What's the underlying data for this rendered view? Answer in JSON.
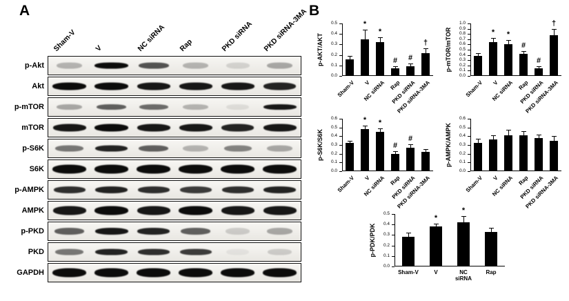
{
  "panels": {
    "a_label": "A",
    "b_label": "B"
  },
  "blot": {
    "lane_labels": [
      "Sham-V",
      "V",
      "NC siRNA",
      "Rap",
      "PKD siRNA",
      "PKD siRNA-3MA"
    ],
    "rows": [
      {
        "label": "p-Akt",
        "thickness": 9,
        "bands": [
          0.25,
          0.95,
          0.65,
          0.25,
          0.12,
          0.3
        ]
      },
      {
        "label": "Akt",
        "thickness": 11,
        "bands": [
          0.95,
          0.95,
          0.9,
          0.9,
          0.9,
          0.85
        ]
      },
      {
        "label": "p-mTOR",
        "thickness": 8,
        "bands": [
          0.3,
          0.6,
          0.55,
          0.25,
          0.08,
          0.9
        ]
      },
      {
        "label": "mTOR",
        "thickness": 11,
        "bands": [
          0.9,
          0.95,
          0.9,
          0.9,
          0.85,
          0.9
        ]
      },
      {
        "label": "p-S6K",
        "thickness": 9,
        "bands": [
          0.5,
          0.85,
          0.6,
          0.25,
          0.45,
          0.3
        ]
      },
      {
        "label": "S6K",
        "thickness": 13,
        "bands": [
          0.95,
          0.95,
          0.95,
          0.95,
          0.95,
          0.95
        ]
      },
      {
        "label": "p-AMPK",
        "thickness": 10,
        "bands": [
          0.8,
          0.85,
          0.8,
          0.75,
          0.8,
          0.85
        ]
      },
      {
        "label": "AMPK",
        "thickness": 13,
        "bands": [
          0.9,
          0.95,
          0.9,
          0.95,
          0.9,
          0.9
        ]
      },
      {
        "label": "p-PKD",
        "thickness": 10,
        "bands": [
          0.6,
          0.9,
          0.85,
          0.6,
          0.15,
          0.3
        ]
      },
      {
        "label": "PKD",
        "thickness": 9,
        "bands": [
          0.5,
          0.85,
          0.8,
          0.75,
          0.05,
          0.15
        ]
      },
      {
        "label": "GAPDH",
        "thickness": 13,
        "bands": [
          0.95,
          0.95,
          0.95,
          0.95,
          0.95,
          0.95
        ]
      }
    ]
  },
  "chart_data": [
    {
      "type": "bar",
      "ylabel": "p-AKT/AKT",
      "ylim": [
        0,
        0.5
      ],
      "ytick_step": 0.1,
      "categories": [
        "Sham-V",
        "V",
        "NC siRNA",
        "Rap",
        "PKD siRNA",
        "PKD siRNA-3MA"
      ],
      "values": [
        0.16,
        0.35,
        0.32,
        0.07,
        0.09,
        0.22
      ],
      "errors": [
        0.03,
        0.09,
        0.05,
        0.02,
        0.03,
        0.04
      ],
      "annotations": [
        "",
        "*",
        "*",
        "#",
        "#",
        "†"
      ],
      "xlabel_rotated": true,
      "bar_color": "#000000",
      "grid": false,
      "legend": "none"
    },
    {
      "type": "bar",
      "ylabel": "p-mTOR/mTOR",
      "ylim": [
        0,
        1.0
      ],
      "ytick_step": 0.1,
      "categories": [
        "Sham-V",
        "V",
        "NC siRNA",
        "Rap",
        "PKD siRNA",
        "PKD siRNA-3MA"
      ],
      "values": [
        0.38,
        0.65,
        0.6,
        0.42,
        0.15,
        0.78
      ],
      "errors": [
        0.05,
        0.07,
        0.08,
        0.06,
        0.04,
        0.12
      ],
      "annotations": [
        "",
        "*",
        "*",
        "#",
        "#",
        "†"
      ],
      "xlabel_rotated": true,
      "bar_color": "#000000",
      "grid": false,
      "legend": "none"
    },
    {
      "type": "bar",
      "ylabel": "p-S6K/S6K",
      "ylim": [
        0,
        0.6
      ],
      "ytick_step": 0.1,
      "categories": [
        "Sham-V",
        "V",
        "NC siRNA",
        "Rap",
        "PKD siRNA",
        "PKD siRNA-3MA"
      ],
      "values": [
        0.32,
        0.48,
        0.45,
        0.2,
        0.27,
        0.22
      ],
      "errors": [
        0.03,
        0.04,
        0.04,
        0.03,
        0.04,
        0.03
      ],
      "annotations": [
        "",
        "*",
        "*",
        "#",
        "#",
        ""
      ],
      "xlabel_rotated": true,
      "bar_color": "#000000",
      "grid": false,
      "legend": "none"
    },
    {
      "type": "bar",
      "ylabel": "p-AMPK/AMPK",
      "ylim": [
        0,
        0.6
      ],
      "ytick_step": 0.1,
      "categories": [
        "Sham-V",
        "V",
        "NC siRNA",
        "Rap",
        "PKD siRNA",
        "PKD siRNA-3MA"
      ],
      "values": [
        0.32,
        0.36,
        0.41,
        0.41,
        0.38,
        0.35
      ],
      "errors": [
        0.05,
        0.05,
        0.06,
        0.05,
        0.04,
        0.05
      ],
      "annotations": [
        "",
        "",
        "",
        "",
        "",
        ""
      ],
      "xlabel_rotated": true,
      "bar_color": "#000000",
      "grid": false,
      "legend": "none"
    },
    {
      "type": "bar",
      "ylabel": "p-PDK/PDK",
      "ylim": [
        0,
        0.5
      ],
      "ytick_step": 0.1,
      "categories": [
        "Sham-V",
        "V",
        "NC\nsiRNA",
        "Rap"
      ],
      "values": [
        0.28,
        0.38,
        0.42,
        0.33
      ],
      "errors": [
        0.04,
        0.025,
        0.06,
        0.04
      ],
      "annotations": [
        "",
        "*",
        "*",
        ""
      ],
      "xlabel_rotated": false,
      "bar_color": "#000000",
      "grid": false,
      "legend": "none"
    }
  ]
}
